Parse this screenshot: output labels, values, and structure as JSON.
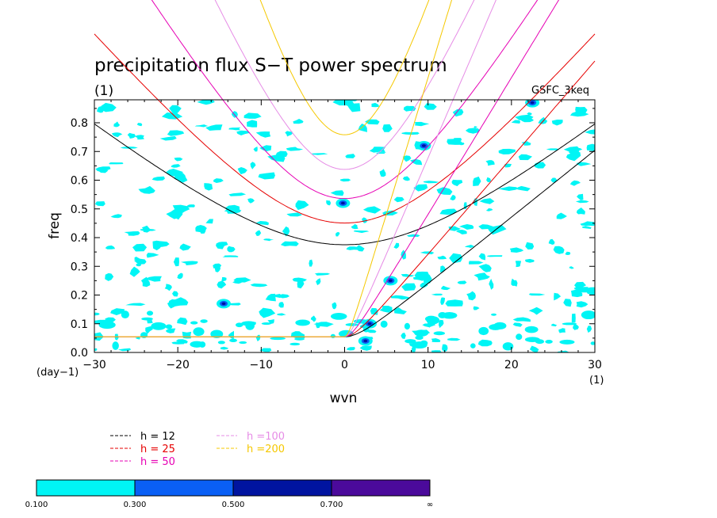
{
  "chart_data": {
    "type": "heatmap",
    "title": "precipitation flux S−T power spectrum",
    "title_unit": "(1)",
    "tag": "GSFC_3keq",
    "xlabel": "wvn",
    "ylabel": "freq",
    "x_unit": "(1)",
    "y_unit": "(day−1)",
    "xlim": [
      -30,
      30
    ],
    "ylim": [
      0,
      0.88
    ],
    "xticks": [
      -30,
      -20,
      -10,
      0,
      10,
      20,
      30
    ],
    "xtick_labels": [
      "−30",
      "−20",
      "−10",
      "0",
      "10",
      "20",
      "30"
    ],
    "yticks": [
      0.0,
      0.1,
      0.2,
      0.3,
      0.4,
      0.5,
      0.6,
      0.7,
      0.8
    ],
    "ytick_labels": [
      "0.0",
      "0.1",
      "0.2",
      "0.3",
      "0.4",
      "0.5",
      "0.6",
      "0.7",
      "0.8"
    ],
    "contour_levels": [
      "0.100",
      "0.300",
      "0.500",
      "0.700",
      "∞"
    ],
    "contour_colors": [
      "#00f5f5",
      "#0a5ff5",
      "#0014a0",
      "#4b0a9b"
    ],
    "dispersion_curves": [
      {
        "label": "h = 12",
        "h": 12,
        "color": "#000000"
      },
      {
        "label": "h = 25",
        "h": 25,
        "color": "#e60000"
      },
      {
        "label": "h = 50",
        "h": 50,
        "color": "#e600b4"
      },
      {
        "label": "h =100",
        "h": 100,
        "color": "#e68ce6"
      },
      {
        "label": "h =200",
        "h": 200,
        "color": "#f5c800"
      }
    ],
    "notable_maxima": [
      {
        "x": -0.2,
        "y": 0.52,
        "level": "0.500"
      },
      {
        "x": 3.0,
        "y": 0.1,
        "level": "0.500"
      },
      {
        "x": 2.5,
        "y": 0.04,
        "level": "0.500"
      },
      {
        "x": -14.5,
        "y": 0.17,
        "level": "0.500"
      },
      {
        "x": 5.5,
        "y": 0.25,
        "level": "0.500"
      },
      {
        "x": 9.5,
        "y": 0.72,
        "level": "0.500"
      },
      {
        "x": 22.5,
        "y": 0.87,
        "level": "0.500"
      }
    ]
  }
}
